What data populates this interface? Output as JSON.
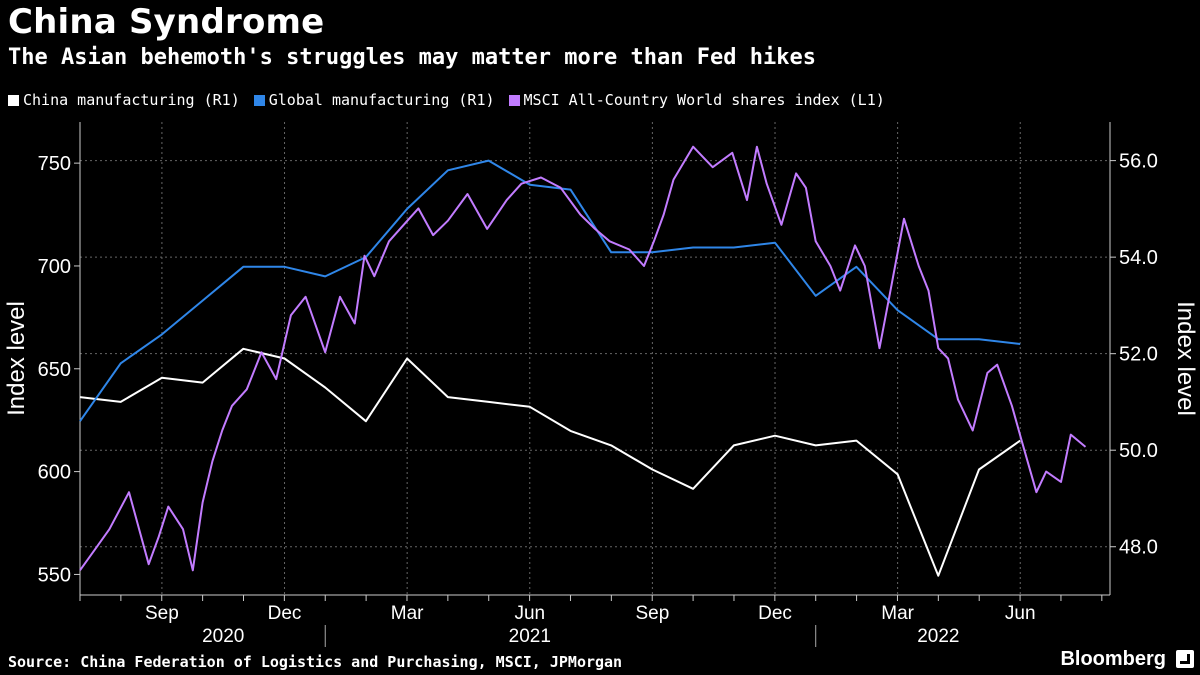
{
  "title": "China Syndrome",
  "subtitle": "The Asian behemoth's struggles may matter more than Fed hikes",
  "source": "Source: China Federation of Logistics and Purchasing, MSCI, JPMorgan",
  "brand": "Bloomberg",
  "colors": {
    "china": "#ffffff",
    "global": "#2f86e8",
    "msci": "#c27cff",
    "grid": "#666666"
  },
  "chart_data": {
    "type": "line",
    "title": "China Syndrome",
    "xlabel": "",
    "ylabel_left": "Index level",
    "ylabel_right": "Index level",
    "ylim_left": [
      540,
      770
    ],
    "ylim_right": [
      47.0,
      56.8
    ],
    "yticks_left": [
      550,
      600,
      650,
      700,
      750
    ],
    "yticks_right": [
      "48.0",
      "50.0",
      "52.0",
      "54.0",
      "56.0"
    ],
    "x_tick_labels": [
      "Sep",
      "Dec",
      "Mar",
      "Jun",
      "Sep",
      "Dec",
      "Mar",
      "Jun"
    ],
    "x_tick_dates": [
      2020.667,
      2020.917,
      2021.167,
      2021.417,
      2021.667,
      2021.917,
      2022.167,
      2022.417
    ],
    "year_labels": [
      {
        "label": "2020",
        "x": 2020.792
      },
      {
        "label": "2021",
        "x": 2021.417
      },
      {
        "label": "2022",
        "x": 2022.25
      }
    ],
    "year_separators": [
      2021.0,
      2022.0
    ],
    "xlim": [
      2020.5,
      2022.6
    ],
    "legend": [
      {
        "label": "China manufacturing (R1)",
        "key": "china"
      },
      {
        "label": "Global manufacturing (R1)",
        "key": "global"
      },
      {
        "label": "MSCI All-Country World shares index (L1)",
        "key": "msci"
      }
    ],
    "series": [
      {
        "name": "China manufacturing (R1)",
        "axis": "right",
        "key": "china",
        "x": [
          2020.5,
          2020.583,
          2020.667,
          2020.75,
          2020.833,
          2020.917,
          2021.0,
          2021.083,
          2021.167,
          2021.25,
          2021.333,
          2021.417,
          2021.5,
          2021.583,
          2021.667,
          2021.75,
          2021.833,
          2021.917,
          2022.0,
          2022.083,
          2022.167,
          2022.25,
          2022.333,
          2022.417
        ],
        "values": [
          51.1,
          51.0,
          51.5,
          51.4,
          52.1,
          51.9,
          51.3,
          50.6,
          51.9,
          51.1,
          51.0,
          50.9,
          50.4,
          50.1,
          49.6,
          49.2,
          50.1,
          50.3,
          50.1,
          50.2,
          49.5,
          47.4,
          49.6,
          50.2
        ]
      },
      {
        "name": "Global manufacturing (R1)",
        "axis": "right",
        "key": "global",
        "x": [
          2020.5,
          2020.583,
          2020.667,
          2020.75,
          2020.833,
          2020.917,
          2021.0,
          2021.083,
          2021.167,
          2021.25,
          2021.333,
          2021.417,
          2021.5,
          2021.583,
          2021.667,
          2021.75,
          2021.833,
          2021.917,
          2022.0,
          2022.083,
          2022.167,
          2022.25,
          2022.333,
          2022.417
        ],
        "values": [
          50.6,
          51.8,
          52.4,
          53.1,
          53.8,
          53.8,
          53.6,
          54.0,
          55.0,
          55.8,
          56.0,
          55.5,
          55.4,
          54.1,
          54.1,
          54.2,
          54.2,
          54.3,
          53.2,
          53.8,
          52.9,
          52.3,
          52.3,
          52.2
        ]
      },
      {
        "name": "MSCI All-Country World shares index (L1)",
        "axis": "left",
        "key": "msci",
        "x": [
          2020.5,
          2020.53,
          2020.56,
          2020.6,
          2020.64,
          2020.66,
          2020.68,
          2020.71,
          2020.73,
          2020.75,
          2020.77,
          2020.79,
          2020.81,
          2020.84,
          2020.87,
          2020.9,
          2020.93,
          2020.96,
          2021.0,
          2021.03,
          2021.06,
          2021.08,
          2021.1,
          2021.13,
          2021.16,
          2021.19,
          2021.22,
          2021.25,
          2021.29,
          2021.33,
          2021.37,
          2021.4,
          2021.44,
          2021.48,
          2021.52,
          2021.55,
          2021.58,
          2021.62,
          2021.65,
          2021.67,
          2021.69,
          2021.71,
          2021.75,
          2021.79,
          2021.83,
          2021.86,
          2021.88,
          2021.9,
          2021.93,
          2021.96,
          2021.98,
          2022.0,
          2022.03,
          2022.05,
          2022.08,
          2022.1,
          2022.13,
          2022.15,
          2022.18,
          2022.21,
          2022.23,
          2022.25,
          2022.27,
          2022.29,
          2022.32,
          2022.35,
          2022.37,
          2022.4,
          2022.42,
          2022.45,
          2022.47,
          2022.5,
          2022.52,
          2022.55
        ],
        "values": [
          552,
          562,
          572,
          590,
          555,
          568,
          583,
          572,
          552,
          585,
          605,
          620,
          632,
          640,
          658,
          645,
          676,
          685,
          658,
          685,
          672,
          705,
          695,
          712,
          720,
          728,
          715,
          722,
          735,
          718,
          732,
          740,
          743,
          738,
          725,
          718,
          712,
          708,
          700,
          712,
          725,
          742,
          758,
          748,
          755,
          732,
          758,
          740,
          720,
          745,
          738,
          712,
          700,
          688,
          710,
          700,
          660,
          685,
          723,
          700,
          688,
          660,
          655,
          635,
          620,
          648,
          652,
          632,
          615,
          590,
          600,
          595,
          618,
          612
        ]
      }
    ]
  }
}
